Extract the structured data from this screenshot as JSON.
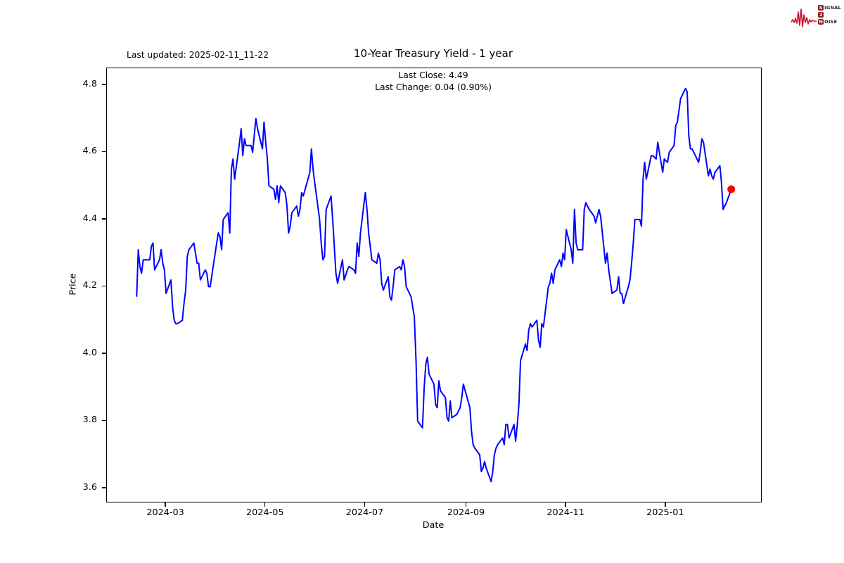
{
  "header": {
    "last_updated": "Last updated: 2025-02-11_11-22",
    "title": "10-Year Treasury Yield - 1 year",
    "subtitle_line1": "Last Close: 4.49",
    "subtitle_line2": "Last Change: 0.04 (0.90%)"
  },
  "logo": {
    "badge1": "S",
    "rest1": "IGNAL",
    "badge2": "2",
    "badge3": "N",
    "rest3": "OISE",
    "wave_color": "#c8102e",
    "badge_color": "#8f1d21"
  },
  "chart_data": {
    "type": "line",
    "title": "10-Year Treasury Yield - 1 year",
    "xlabel": "Date",
    "ylabel": "Price",
    "line_color": "#0000ff",
    "last_point_color": "#ff0000",
    "grid": false,
    "legend": "none",
    "ylim": [
      3.56,
      4.85
    ],
    "x_margin_frac": 0.05,
    "yticks": [
      3.6,
      3.8,
      4.0,
      4.2,
      4.4,
      4.6,
      4.8
    ],
    "ytick_labels": [
      "3.6",
      "3.8",
      "4.0",
      "4.2",
      "4.4",
      "4.6",
      "4.8"
    ],
    "xticks": [
      {
        "date": "2024-03-01",
        "label": "2024-03"
      },
      {
        "date": "2024-05-01",
        "label": "2024-05"
      },
      {
        "date": "2024-07-01",
        "label": "2024-07"
      },
      {
        "date": "2024-09-01",
        "label": "2024-09"
      },
      {
        "date": "2024-11-01",
        "label": "2024-11"
      },
      {
        "date": "2025-01-01",
        "label": "2025-01"
      }
    ],
    "last_close": 4.49,
    "last_change": 0.04,
    "last_change_pct": "0.90%",
    "dates": [
      "2024-02-12",
      "2024-02-13",
      "2024-02-14",
      "2024-02-15",
      "2024-02-16",
      "2024-02-20",
      "2024-02-21",
      "2024-02-22",
      "2024-02-23",
      "2024-02-26",
      "2024-02-27",
      "2024-02-28",
      "2024-02-29",
      "2024-03-01",
      "2024-03-04",
      "2024-03-05",
      "2024-03-06",
      "2024-03-07",
      "2024-03-08",
      "2024-03-11",
      "2024-03-12",
      "2024-03-13",
      "2024-03-14",
      "2024-03-15",
      "2024-03-18",
      "2024-03-19",
      "2024-03-20",
      "2024-03-21",
      "2024-03-22",
      "2024-03-25",
      "2024-03-26",
      "2024-03-27",
      "2024-03-28",
      "2024-04-01",
      "2024-04-02",
      "2024-04-03",
      "2024-04-04",
      "2024-04-05",
      "2024-04-08",
      "2024-04-09",
      "2024-04-10",
      "2024-04-11",
      "2024-04-12",
      "2024-04-15",
      "2024-04-16",
      "2024-04-17",
      "2024-04-18",
      "2024-04-19",
      "2024-04-22",
      "2024-04-23",
      "2024-04-24",
      "2024-04-25",
      "2024-04-26",
      "2024-04-29",
      "2024-04-30",
      "2024-05-01",
      "2024-05-02",
      "2024-05-03",
      "2024-05-06",
      "2024-05-07",
      "2024-05-08",
      "2024-05-09",
      "2024-05-10",
      "2024-05-13",
      "2024-05-14",
      "2024-05-15",
      "2024-05-16",
      "2024-05-17",
      "2024-05-20",
      "2024-05-21",
      "2024-05-22",
      "2024-05-23",
      "2024-05-24",
      "2024-05-28",
      "2024-05-29",
      "2024-05-30",
      "2024-05-31",
      "2024-06-03",
      "2024-06-04",
      "2024-06-05",
      "2024-06-06",
      "2024-06-07",
      "2024-06-10",
      "2024-06-11",
      "2024-06-12",
      "2024-06-13",
      "2024-06-14",
      "2024-06-17",
      "2024-06-18",
      "2024-06-20",
      "2024-06-21",
      "2024-06-24",
      "2024-06-25",
      "2024-06-26",
      "2024-06-27",
      "2024-06-28",
      "2024-07-01",
      "2024-07-02",
      "2024-07-03",
      "2024-07-05",
      "2024-07-08",
      "2024-07-09",
      "2024-07-10",
      "2024-07-11",
      "2024-07-12",
      "2024-07-15",
      "2024-07-16",
      "2024-07-17",
      "2024-07-18",
      "2024-07-19",
      "2024-07-22",
      "2024-07-23",
      "2024-07-24",
      "2024-07-25",
      "2024-07-26",
      "2024-07-29",
      "2024-07-30",
      "2024-07-31",
      "2024-08-01",
      "2024-08-02",
      "2024-08-05",
      "2024-08-06",
      "2024-08-07",
      "2024-08-08",
      "2024-08-09",
      "2024-08-12",
      "2024-08-13",
      "2024-08-14",
      "2024-08-15",
      "2024-08-16",
      "2024-08-19",
      "2024-08-20",
      "2024-08-21",
      "2024-08-22",
      "2024-08-23",
      "2024-08-26",
      "2024-08-27",
      "2024-08-28",
      "2024-08-29",
      "2024-08-30",
      "2024-09-03",
      "2024-09-04",
      "2024-09-05",
      "2024-09-06",
      "2024-09-09",
      "2024-09-10",
      "2024-09-11",
      "2024-09-12",
      "2024-09-13",
      "2024-09-16",
      "2024-09-17",
      "2024-09-18",
      "2024-09-19",
      "2024-09-20",
      "2024-09-23",
      "2024-09-24",
      "2024-09-25",
      "2024-09-26",
      "2024-09-27",
      "2024-09-30",
      "2024-10-01",
      "2024-10-02",
      "2024-10-03",
      "2024-10-04",
      "2024-10-07",
      "2024-10-08",
      "2024-10-09",
      "2024-10-10",
      "2024-10-11",
      "2024-10-14",
      "2024-10-15",
      "2024-10-16",
      "2024-10-17",
      "2024-10-18",
      "2024-10-21",
      "2024-10-22",
      "2024-10-23",
      "2024-10-24",
      "2024-10-25",
      "2024-10-28",
      "2024-10-29",
      "2024-10-30",
      "2024-10-31",
      "2024-11-01",
      "2024-11-04",
      "2024-11-05",
      "2024-11-06",
      "2024-11-07",
      "2024-11-08",
      "2024-11-11",
      "2024-11-12",
      "2024-11-13",
      "2024-11-14",
      "2024-11-15",
      "2024-11-18",
      "2024-11-19",
      "2024-11-20",
      "2024-11-21",
      "2024-11-22",
      "2024-11-25",
      "2024-11-26",
      "2024-11-27",
      "2024-11-29",
      "2024-12-02",
      "2024-12-03",
      "2024-12-04",
      "2024-12-05",
      "2024-12-06",
      "2024-12-09",
      "2024-12-10",
      "2024-12-11",
      "2024-12-12",
      "2024-12-13",
      "2024-12-16",
      "2024-12-17",
      "2024-12-18",
      "2024-12-19",
      "2024-12-20",
      "2024-12-23",
      "2024-12-24",
      "2024-12-26",
      "2024-12-27",
      "2024-12-30",
      "2024-12-31",
      "2025-01-02",
      "2025-01-03",
      "2025-01-06",
      "2025-01-07",
      "2025-01-08",
      "2025-01-10",
      "2025-01-13",
      "2025-01-14",
      "2025-01-15",
      "2025-01-16",
      "2025-01-17",
      "2025-01-21",
      "2025-01-22",
      "2025-01-23",
      "2025-01-24",
      "2025-01-27",
      "2025-01-28",
      "2025-01-29",
      "2025-01-30",
      "2025-01-31",
      "2025-02-03",
      "2025-02-04",
      "2025-02-05",
      "2025-02-06",
      "2025-02-07",
      "2025-02-10"
    ],
    "values": [
      4.17,
      4.31,
      4.26,
      4.24,
      4.28,
      4.28,
      4.32,
      4.33,
      4.25,
      4.28,
      4.31,
      4.27,
      4.25,
      4.18,
      4.22,
      4.14,
      4.1,
      4.09,
      4.09,
      4.1,
      4.15,
      4.19,
      4.29,
      4.31,
      4.33,
      4.3,
      4.27,
      4.27,
      4.22,
      4.25,
      4.24,
      4.2,
      4.2,
      4.33,
      4.36,
      4.35,
      4.31,
      4.4,
      4.42,
      4.36,
      4.55,
      4.58,
      4.52,
      4.63,
      4.67,
      4.59,
      4.64,
      4.62,
      4.62,
      4.6,
      4.65,
      4.7,
      4.67,
      4.61,
      4.69,
      4.63,
      4.58,
      4.5,
      4.49,
      4.46,
      4.5,
      4.45,
      4.5,
      4.48,
      4.44,
      4.36,
      4.38,
      4.42,
      4.44,
      4.41,
      4.43,
      4.48,
      4.47,
      4.54,
      4.61,
      4.55,
      4.51,
      4.4,
      4.33,
      4.28,
      4.29,
      4.43,
      4.47,
      4.4,
      4.32,
      4.24,
      4.21,
      4.28,
      4.22,
      4.25,
      4.26,
      4.25,
      4.24,
      4.33,
      4.29,
      4.36,
      4.48,
      4.43,
      4.36,
      4.28,
      4.27,
      4.3,
      4.28,
      4.21,
      4.19,
      4.23,
      4.17,
      4.16,
      4.2,
      4.25,
      4.26,
      4.25,
      4.28,
      4.26,
      4.2,
      4.17,
      4.14,
      4.11,
      3.98,
      3.8,
      3.78,
      3.9,
      3.97,
      3.99,
      3.94,
      3.91,
      3.85,
      3.84,
      3.92,
      3.89,
      3.87,
      3.81,
      3.8,
      3.86,
      3.81,
      3.82,
      3.83,
      3.84,
      3.87,
      3.91,
      3.84,
      3.77,
      3.73,
      3.72,
      3.7,
      3.65,
      3.66,
      3.68,
      3.66,
      3.62,
      3.65,
      3.7,
      3.72,
      3.73,
      3.75,
      3.73,
      3.79,
      3.79,
      3.75,
      3.79,
      3.74,
      3.79,
      3.85,
      3.98,
      4.03,
      4.01,
      4.07,
      4.09,
      4.08,
      4.1,
      4.04,
      4.02,
      4.09,
      4.08,
      4.2,
      4.21,
      4.24,
      4.21,
      4.25,
      4.28,
      4.26,
      4.3,
      4.28,
      4.37,
      4.31,
      4.27,
      4.43,
      4.33,
      4.31,
      4.31,
      4.43,
      4.45,
      4.44,
      4.43,
      4.41,
      4.39,
      4.41,
      4.43,
      4.41,
      4.27,
      4.3,
      4.25,
      4.18,
      4.19,
      4.23,
      4.18,
      4.18,
      4.15,
      4.2,
      4.22,
      4.27,
      4.33,
      4.4,
      4.4,
      4.38,
      4.52,
      4.57,
      4.52,
      4.59,
      4.59,
      4.58,
      4.63,
      4.54,
      4.58,
      4.57,
      4.6,
      4.62,
      4.68,
      4.69,
      4.76,
      4.79,
      4.78,
      4.65,
      4.61,
      4.61,
      4.57,
      4.6,
      4.64,
      4.63,
      4.53,
      4.55,
      4.53,
      4.52,
      4.54,
      4.56,
      4.51,
      4.43,
      4.44,
      4.45,
      4.49
    ]
  }
}
